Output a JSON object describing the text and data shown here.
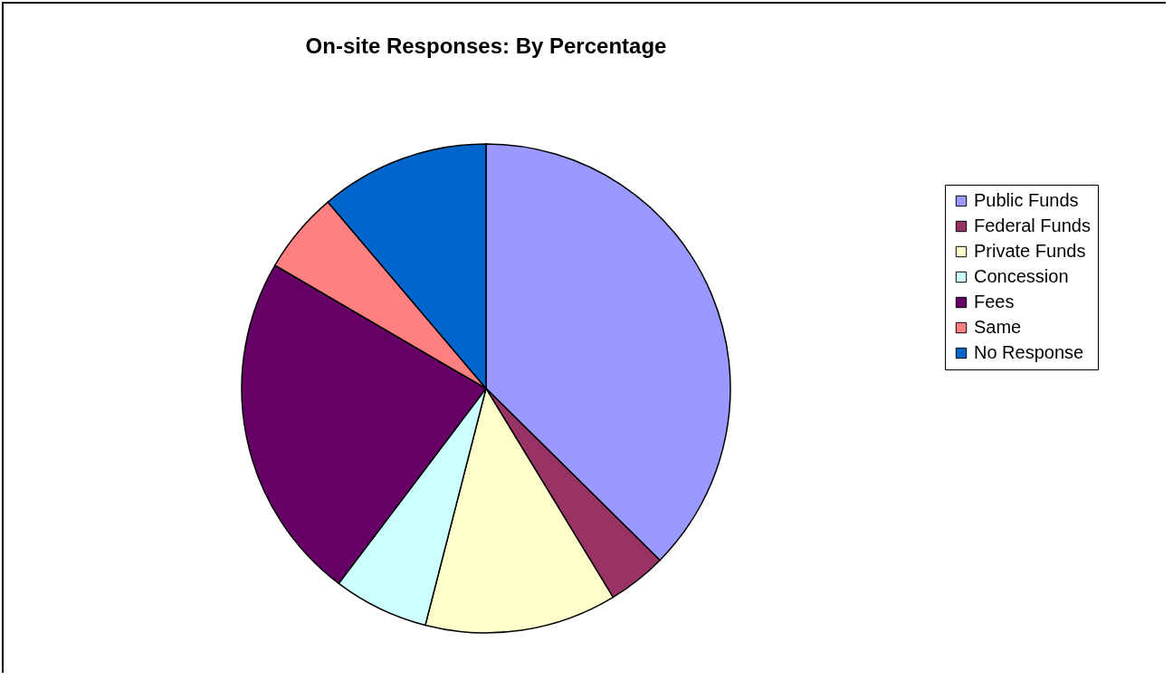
{
  "chart_data": {
    "type": "pie",
    "title": "On-site Responses: By Percentage",
    "categories": [
      "Public Funds",
      "Federal Funds",
      "Private Funds",
      "Concession",
      "Fees",
      "Same",
      "No Response"
    ],
    "values": [
      37.4,
      3.9,
      12.7,
      6.3,
      23.1,
      5.4,
      11.2
    ],
    "colors": [
      "#9999ff",
      "#993366",
      "#ffffcc",
      "#ccffff",
      "#660066",
      "#ff8080",
      "#0066cc"
    ],
    "legend": "right"
  }
}
